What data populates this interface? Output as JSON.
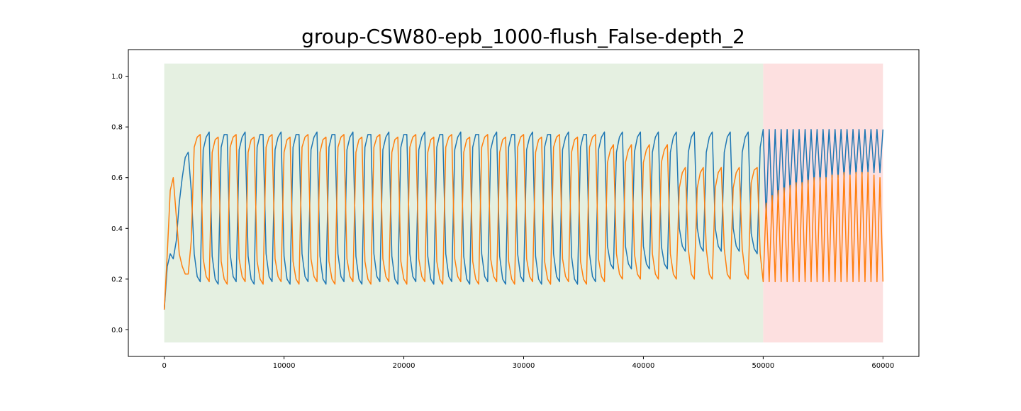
{
  "chart_data": {
    "type": "line",
    "title": "group-CSW80-epb_1000-flush_False-depth_2",
    "xlim": [
      -3000,
      63000
    ],
    "ylim": [
      -0.105,
      1.105
    ],
    "xticks": [
      0,
      10000,
      20000,
      30000,
      40000,
      50000,
      60000
    ],
    "yticks": [
      {
        "value": 0,
        "label": "0.0"
      },
      0.2,
      0.4,
      0.6,
      0.8,
      {
        "value": 1,
        "label": "1.0"
      }
    ],
    "spans": [
      {
        "x": [
          0,
          50000
        ],
        "y": [
          -0.05,
          1.05
        ],
        "color": "#e5f0e1"
      },
      {
        "x": [
          50000,
          60000
        ],
        "y": [
          -0.05,
          1.05
        ],
        "color": "#fde0e0"
      }
    ],
    "x": [
      0,
      250,
      500,
      750,
      1000,
      1250,
      1500,
      1750,
      2000,
      2250,
      2500,
      2750,
      3000,
      3250,
      3500,
      3750,
      4000,
      4250,
      4500,
      4750,
      5000,
      5250,
      5500,
      5750,
      6000,
      6250,
      6500,
      6750,
      7000,
      7250,
      7500,
      7750,
      8000,
      8250,
      8500,
      8750,
      9000,
      9250,
      9500,
      9750,
      10000,
      10250,
      10500,
      10750,
      11000,
      11250,
      11500,
      11750,
      12000,
      12250,
      12500,
      12750,
      13000,
      13250,
      13500,
      13750,
      14000,
      14250,
      14500,
      14750,
      15000,
      15250,
      15500,
      15750,
      16000,
      16250,
      16500,
      16750,
      17000,
      17250,
      17500,
      17750,
      18000,
      18250,
      18500,
      18750,
      19000,
      19250,
      19500,
      19750,
      20000,
      20250,
      20500,
      20750,
      21000,
      21250,
      21500,
      21750,
      22000,
      22250,
      22500,
      22750,
      23000,
      23250,
      23500,
      23750,
      24000,
      24250,
      24500,
      24750,
      25000,
      25250,
      25500,
      25750,
      26000,
      26250,
      26500,
      26750,
      27000,
      27250,
      27500,
      27750,
      28000,
      28250,
      28500,
      28750,
      29000,
      29250,
      29500,
      29750,
      30000,
      30250,
      30500,
      30750,
      31000,
      31250,
      31500,
      31750,
      32000,
      32250,
      32500,
      32750,
      33000,
      33250,
      33500,
      33750,
      34000,
      34250,
      34500,
      34750,
      35000,
      35250,
      35500,
      35750,
      36000,
      36250,
      36500,
      36750,
      37000,
      37250,
      37500,
      37750,
      38000,
      38250,
      38500,
      38750,
      39000,
      39250,
      39500,
      39750,
      40000,
      40250,
      40500,
      40750,
      41000,
      41250,
      41500,
      41750,
      42000,
      42250,
      42500,
      42750,
      43000,
      43250,
      43500,
      43750,
      44000,
      44250,
      44500,
      44750,
      45000,
      45250,
      45500,
      45750,
      46000,
      46250,
      46500,
      46750,
      47000,
      47250,
      47500,
      47750,
      48000,
      48250,
      48500,
      48750,
      49000,
      49250,
      49500,
      49750,
      50000,
      50250,
      50500,
      50750,
      51000,
      51250,
      51500,
      51750,
      52000,
      52250,
      52500,
      52750,
      53000,
      53250,
      53500,
      53750,
      54000,
      54250,
      54500,
      54750,
      55000,
      55250,
      55500,
      55750,
      56000,
      56250,
      56500,
      56750,
      57000,
      57250,
      57500,
      57750,
      58000,
      58250,
      58500,
      58750,
      59000,
      59250,
      59500,
      59750,
      60000
    ],
    "series": [
      {
        "color": "#1f77b4",
        "values": [
          0.08,
          0.25,
          0.3,
          0.28,
          0.35,
          0.5,
          0.6,
          0.68,
          0.7,
          0.55,
          0.3,
          0.21,
          0.19,
          0.71,
          0.76,
          0.78,
          0.29,
          0.2,
          0.18,
          0.72,
          0.77,
          0.77,
          0.3,
          0.21,
          0.19,
          0.71,
          0.76,
          0.78,
          0.29,
          0.2,
          0.18,
          0.72,
          0.77,
          0.77,
          0.3,
          0.21,
          0.19,
          0.71,
          0.76,
          0.78,
          0.29,
          0.2,
          0.18,
          0.72,
          0.77,
          0.77,
          0.3,
          0.21,
          0.19,
          0.71,
          0.76,
          0.78,
          0.29,
          0.2,
          0.18,
          0.72,
          0.77,
          0.77,
          0.3,
          0.21,
          0.19,
          0.71,
          0.76,
          0.78,
          0.29,
          0.2,
          0.18,
          0.72,
          0.77,
          0.77,
          0.3,
          0.21,
          0.19,
          0.71,
          0.76,
          0.78,
          0.29,
          0.2,
          0.18,
          0.72,
          0.77,
          0.77,
          0.3,
          0.21,
          0.19,
          0.71,
          0.76,
          0.78,
          0.29,
          0.2,
          0.18,
          0.72,
          0.77,
          0.77,
          0.3,
          0.21,
          0.19,
          0.71,
          0.76,
          0.78,
          0.29,
          0.2,
          0.18,
          0.72,
          0.77,
          0.77,
          0.3,
          0.21,
          0.19,
          0.71,
          0.76,
          0.78,
          0.29,
          0.2,
          0.18,
          0.72,
          0.77,
          0.77,
          0.3,
          0.21,
          0.19,
          0.71,
          0.76,
          0.78,
          0.29,
          0.2,
          0.18,
          0.72,
          0.77,
          0.77,
          0.3,
          0.21,
          0.19,
          0.71,
          0.76,
          0.78,
          0.29,
          0.2,
          0.18,
          0.72,
          0.77,
          0.77,
          0.3,
          0.21,
          0.19,
          0.71,
          0.76,
          0.78,
          0.33,
          0.26,
          0.24,
          0.7,
          0.76,
          0.78,
          0.33,
          0.26,
          0.24,
          0.7,
          0.76,
          0.78,
          0.33,
          0.26,
          0.24,
          0.7,
          0.76,
          0.78,
          0.33,
          0.26,
          0.24,
          0.7,
          0.76,
          0.78,
          0.4,
          0.33,
          0.31,
          0.7,
          0.76,
          0.78,
          0.4,
          0.33,
          0.31,
          0.7,
          0.76,
          0.78,
          0.4,
          0.33,
          0.31,
          0.7,
          0.76,
          0.78,
          0.4,
          0.33,
          0.31,
          0.7,
          0.76,
          0.78,
          0.38,
          0.32,
          0.3,
          0.72,
          0.79,
          0.44,
          0.79,
          0.47,
          0.79,
          0.5,
          0.79,
          0.52,
          0.79,
          0.54,
          0.79,
          0.55,
          0.79,
          0.56,
          0.79,
          0.57,
          0.79,
          0.58,
          0.79,
          0.58,
          0.79,
          0.59,
          0.79,
          0.6,
          0.79,
          0.6,
          0.79,
          0.6,
          0.79,
          0.61,
          0.79,
          0.61,
          0.79,
          0.61,
          0.79,
          0.62,
          0.79,
          0.62,
          0.79,
          0.62,
          0.79
        ]
      },
      {
        "color": "#ff7f0e",
        "values": [
          0.08,
          0.3,
          0.55,
          0.6,
          0.45,
          0.3,
          0.25,
          0.22,
          0.22,
          0.35,
          0.72,
          0.76,
          0.77,
          0.28,
          0.21,
          0.19,
          0.7,
          0.75,
          0.76,
          0.27,
          0.2,
          0.18,
          0.72,
          0.76,
          0.77,
          0.28,
          0.21,
          0.19,
          0.7,
          0.75,
          0.76,
          0.27,
          0.2,
          0.18,
          0.72,
          0.76,
          0.77,
          0.28,
          0.21,
          0.19,
          0.7,
          0.75,
          0.76,
          0.27,
          0.2,
          0.18,
          0.72,
          0.76,
          0.77,
          0.28,
          0.21,
          0.19,
          0.7,
          0.75,
          0.76,
          0.27,
          0.2,
          0.18,
          0.72,
          0.76,
          0.77,
          0.28,
          0.21,
          0.19,
          0.7,
          0.75,
          0.76,
          0.27,
          0.2,
          0.18,
          0.72,
          0.76,
          0.77,
          0.28,
          0.21,
          0.19,
          0.7,
          0.75,
          0.76,
          0.27,
          0.2,
          0.18,
          0.72,
          0.76,
          0.77,
          0.28,
          0.21,
          0.19,
          0.7,
          0.75,
          0.76,
          0.27,
          0.2,
          0.18,
          0.72,
          0.76,
          0.77,
          0.28,
          0.21,
          0.19,
          0.7,
          0.75,
          0.76,
          0.27,
          0.2,
          0.18,
          0.72,
          0.76,
          0.77,
          0.28,
          0.21,
          0.19,
          0.7,
          0.75,
          0.76,
          0.27,
          0.2,
          0.18,
          0.72,
          0.76,
          0.77,
          0.28,
          0.21,
          0.19,
          0.7,
          0.75,
          0.76,
          0.27,
          0.2,
          0.18,
          0.72,
          0.76,
          0.77,
          0.28,
          0.21,
          0.19,
          0.7,
          0.75,
          0.76,
          0.27,
          0.2,
          0.18,
          0.72,
          0.76,
          0.77,
          0.28,
          0.21,
          0.19,
          0.66,
          0.71,
          0.73,
          0.3,
          0.22,
          0.2,
          0.66,
          0.71,
          0.73,
          0.3,
          0.22,
          0.2,
          0.66,
          0.71,
          0.73,
          0.3,
          0.22,
          0.2,
          0.66,
          0.71,
          0.73,
          0.3,
          0.22,
          0.2,
          0.56,
          0.62,
          0.64,
          0.32,
          0.22,
          0.2,
          0.56,
          0.62,
          0.64,
          0.32,
          0.22,
          0.2,
          0.56,
          0.62,
          0.64,
          0.32,
          0.22,
          0.2,
          0.56,
          0.62,
          0.64,
          0.32,
          0.22,
          0.2,
          0.58,
          0.63,
          0.64,
          0.3,
          0.19,
          0.5,
          0.19,
          0.53,
          0.19,
          0.55,
          0.19,
          0.56,
          0.19,
          0.57,
          0.19,
          0.58,
          0.19,
          0.58,
          0.19,
          0.59,
          0.19,
          0.6,
          0.19,
          0.6,
          0.19,
          0.6,
          0.19,
          0.61,
          0.19,
          0.61,
          0.19,
          0.62,
          0.19,
          0.61,
          0.19,
          0.62,
          0.19,
          0.62,
          0.19,
          0.62,
          0.19,
          0.61,
          0.19,
          0.6,
          0.19
        ]
      }
    ]
  }
}
